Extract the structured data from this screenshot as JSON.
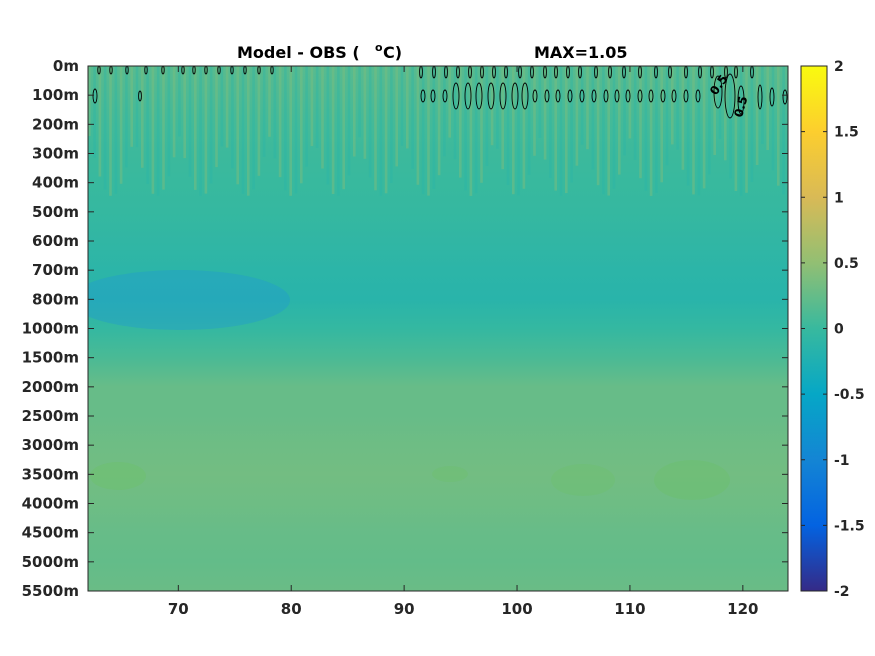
{
  "title": {
    "left": "Model - OBS (",
    "superscript": "o",
    "unit": "C)",
    "right": "MAX=1.05"
  },
  "chart_data": {
    "type": "heatmap",
    "title": "Model - OBS (oC)    MAX=1.05",
    "max_value": 1.05,
    "x_ticks": [
      70,
      80,
      90,
      100,
      110,
      120
    ],
    "x_range": [
      62,
      124
    ],
    "y_ticks": [
      "0m",
      "100m",
      "200m",
      "300m",
      "400m",
      "500m",
      "600m",
      "700m",
      "800m",
      "1000m",
      "1500m",
      "2000m",
      "2500m",
      "3000m",
      "3500m",
      "4000m",
      "4500m",
      "5000m",
      "5500m"
    ],
    "colorbar": {
      "range": [
        -2,
        2
      ],
      "ticks": [
        "2",
        "1.5",
        "1",
        "0.5",
        "0",
        "-0.5",
        "-1",
        "-1.5",
        "-2"
      ],
      "colormap": "parula"
    },
    "depth_profile": [
      0.18,
      0.12,
      0.06,
      0.02,
      0.0,
      -0.03,
      -0.07,
      -0.12,
      -0.15,
      -0.04,
      0.1,
      0.26,
      0.26,
      0.3,
      0.33,
      0.3,
      0.26,
      0.24,
      0.28
    ],
    "contour_level": 0.5,
    "contour_labels": [
      "0.5",
      "0.5"
    ]
  }
}
